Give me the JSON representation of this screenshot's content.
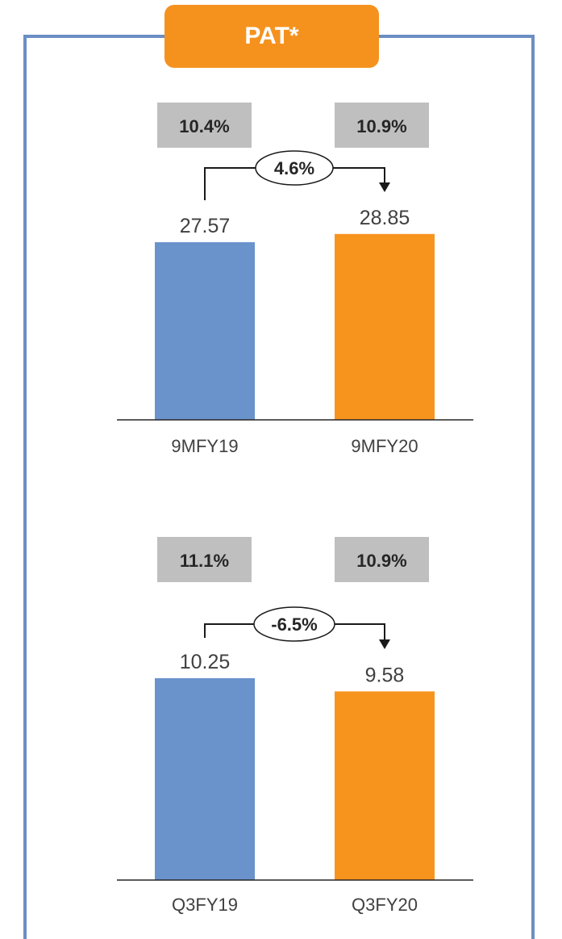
{
  "title": "PAT*",
  "colors": {
    "frame": "#6b8fc4",
    "title_bg": "#f5921e",
    "series_prev": "#6a93cc",
    "series_curr": "#f7941d",
    "margin_box": "#bfbfbf"
  },
  "chart_data": [
    {
      "type": "bar",
      "categories": [
        "9MFY19",
        "9MFY20"
      ],
      "values": [
        27.57,
        28.85
      ],
      "data_labels": [
        "27.57",
        "28.85"
      ],
      "margins": [
        "10.4%",
        "10.9%"
      ],
      "growth": "4.6%",
      "ylim": [
        0,
        30.5
      ]
    },
    {
      "type": "bar",
      "categories": [
        "Q3FY19",
        "Q3FY20"
      ],
      "values": [
        10.25,
        9.58
      ],
      "data_labels": [
        "10.25",
        "9.58"
      ],
      "margins": [
        "11.1%",
        "10.9%"
      ],
      "growth": "-6.5%",
      "ylim": [
        0,
        10.83
      ]
    }
  ]
}
